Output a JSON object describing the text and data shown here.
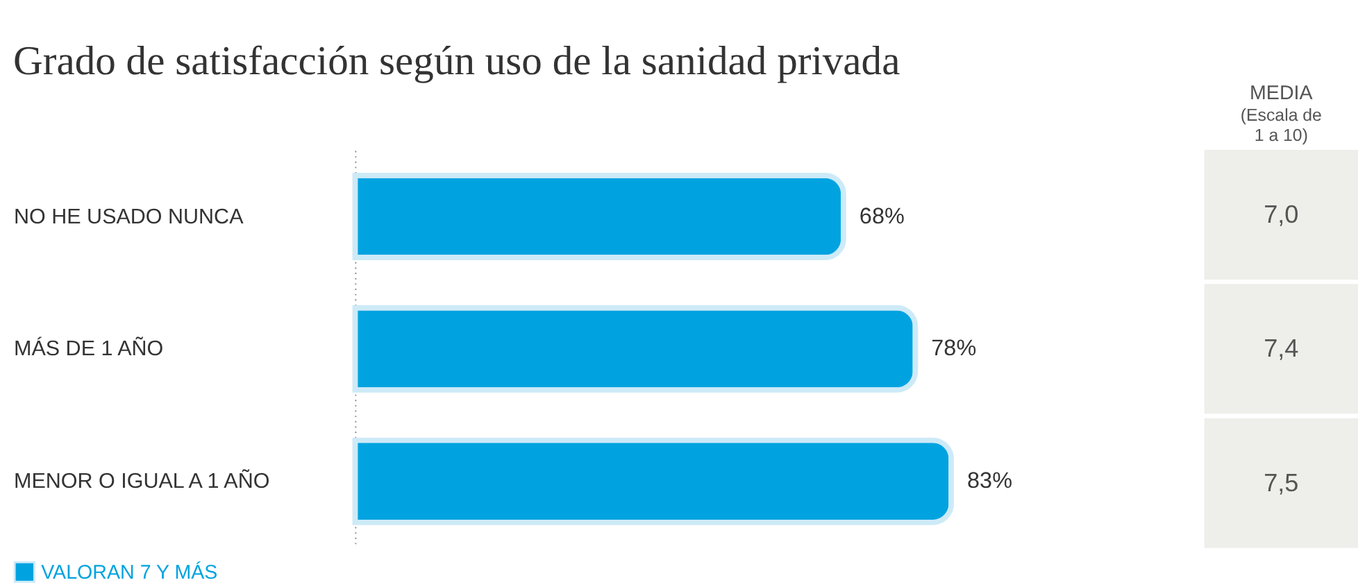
{
  "chart_data": {
    "type": "bar",
    "orientation": "horizontal",
    "title": "Grado de satisfacción según uso de la sanidad privada",
    "categories": [
      "NO HE USADO NUNCA",
      "MÁS DE 1 AÑO",
      "MENOR O IGUAL A 1 AÑO"
    ],
    "series": [
      {
        "name": "VALORAN 7 Y MÁS",
        "color": "#00a3e0",
        "values": [
          68,
          78,
          83
        ],
        "value_labels": [
          "68%",
          "78%",
          "83%"
        ]
      }
    ],
    "grid": false,
    "legend": "bottom left",
    "annotations": [
      "MEDIA",
      "(Escala de 1 a 10)",
      "7,0",
      "7,4",
      "7,5"
    ]
  }
}
